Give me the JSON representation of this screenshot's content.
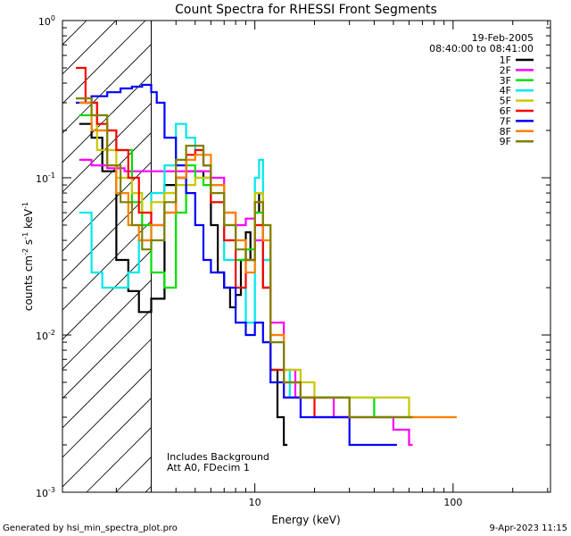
{
  "chart_data": {
    "type": "line",
    "title": "Count Spectra for RHESSI Front Segments",
    "xlabel": "Energy (keV)",
    "ylabel_parts": [
      "counts cm",
      "-2",
      " s",
      "-1",
      " keV",
      "-1"
    ],
    "xscale": "log",
    "yscale": "log",
    "xlim": [
      1.07,
      310
    ],
    "ylim": [
      0.001,
      1
    ],
    "x_ticks": [
      {
        "value": 10,
        "label": "10"
      },
      {
        "value": 100,
        "label": "100"
      }
    ],
    "y_ticks": [
      {
        "value": 0.001,
        "label": "10",
        "exp": "-3"
      },
      {
        "value": 0.01,
        "label": "10",
        "exp": "-2"
      },
      {
        "value": 0.1,
        "label": "10",
        "exp": "-1"
      },
      {
        "value": 1,
        "label": "10",
        "exp": "0"
      }
    ],
    "shaded_region": {
      "from_keV": 1.07,
      "to_keV": 3.0,
      "pattern": "diagonal hatch"
    },
    "date": "19-Feb-2005",
    "time_range": "08:40:00 to 08:41:00",
    "annotations": [
      "Includes Background",
      "Att A0, FDecim 1"
    ],
    "series": [
      {
        "name": "1F",
        "color": "#000000",
        "x": [
          1.3,
          1.5,
          1.7,
          2.0,
          2.3,
          2.6,
          3.0,
          3.5,
          4.0,
          4.5,
          5.0,
          5.5,
          6.0,
          6.5,
          7.0,
          7.5,
          8.0,
          8.5,
          9.0,
          9.5,
          10.0,
          10.5,
          11.0,
          12.0,
          13.0,
          14.0
        ],
        "values": [
          0.22,
          0.18,
          0.11,
          0.03,
          0.019,
          0.014,
          0.017,
          0.09,
          0.1,
          0.11,
          0.11,
          0.1,
          0.05,
          0.025,
          0.02,
          0.015,
          0.018,
          0.03,
          0.045,
          0.03,
          0.06,
          0.08,
          0.02,
          0.006,
          0.003,
          0.002
        ]
      },
      {
        "name": "2F",
        "color": "#ff00ff",
        "x": [
          1.3,
          1.5,
          1.8,
          2.2,
          2.6,
          3.0,
          3.5,
          4.0,
          5.0,
          6.0,
          7.0,
          8.0,
          9.0,
          10.0,
          11.0,
          12.0,
          14.0,
          16.0,
          20.0,
          25.0,
          30.0,
          40.0,
          50.0,
          60.0
        ],
        "values": [
          0.13,
          0.12,
          0.115,
          0.11,
          0.11,
          0.11,
          0.11,
          0.11,
          0.11,
          0.1,
          0.06,
          0.05,
          0.055,
          0.04,
          0.03,
          0.012,
          0.006,
          0.004,
          0.004,
          0.003,
          0.003,
          0.003,
          0.0025,
          0.002
        ]
      },
      {
        "name": "3F",
        "color": "#00e000",
        "x": [
          1.3,
          1.6,
          2.0,
          2.4,
          2.7,
          3.0,
          3.5,
          4.0,
          4.5,
          5.0,
          5.5,
          6.0,
          7.0,
          8.0,
          9.0,
          10.0,
          11.0,
          12.0,
          14.0,
          17.0,
          20.0,
          30.0,
          40.0,
          60.0
        ],
        "values": [
          0.25,
          0.2,
          0.15,
          0.07,
          0.05,
          0.025,
          0.02,
          0.06,
          0.12,
          0.1,
          0.09,
          0.07,
          0.05,
          0.03,
          0.035,
          0.06,
          0.02,
          0.006,
          0.005,
          0.004,
          0.004,
          0.004,
          0.003,
          0.003
        ]
      },
      {
        "name": "4F",
        "color": "#00e8e8",
        "x": [
          1.3,
          1.5,
          1.7,
          2.0,
          2.3,
          2.6,
          3.0,
          3.5,
          4.0,
          4.5,
          5.0,
          5.5,
          6.0,
          7.0,
          8.0,
          9.0,
          10.0,
          10.5,
          11.0,
          12.0,
          15.0,
          20.0,
          30.0,
          50.0
        ],
        "values": [
          0.06,
          0.025,
          0.02,
          0.02,
          0.025,
          0.04,
          0.08,
          0.12,
          0.22,
          0.18,
          0.15,
          0.12,
          0.09,
          0.03,
          0.02,
          0.012,
          0.1,
          0.13,
          0.03,
          0.006,
          0.004,
          0.004,
          0.003,
          0.003
        ]
      },
      {
        "name": "5F",
        "color": "#c8c800",
        "x": [
          1.3,
          1.6,
          2.0,
          2.4,
          2.7,
          3.0,
          3.5,
          4.0,
          5.0,
          6.0,
          7.0,
          8.0,
          9.0,
          10.0,
          11.0,
          12.0,
          14.0,
          17.0,
          20.0,
          25.0,
          30.0,
          40.0,
          60.0,
          100.0
        ],
        "values": [
          0.3,
          0.15,
          0.1,
          0.08,
          0.06,
          0.07,
          0.08,
          0.09,
          0.1,
          0.09,
          0.06,
          0.04,
          0.03,
          0.08,
          0.05,
          0.01,
          0.006,
          0.005,
          0.004,
          0.004,
          0.004,
          0.004,
          0.003,
          0.003
        ]
      },
      {
        "name": "6F",
        "color": "#ff0000",
        "x": [
          1.25,
          1.4,
          1.6,
          1.8,
          2.0,
          2.3,
          2.6,
          3.0,
          3.5,
          4.0,
          4.5,
          5.0,
          5.5,
          6.0,
          7.0,
          8.0,
          9.0,
          10.0,
          11.0,
          12.0,
          14.0,
          17.0,
          20.0,
          30.0
        ],
        "values": [
          0.5,
          0.3,
          0.22,
          0.2,
          0.15,
          0.1,
          0.06,
          0.05,
          0.06,
          0.1,
          0.14,
          0.15,
          0.12,
          0.07,
          0.04,
          0.02,
          0.03,
          0.05,
          0.02,
          0.006,
          0.004,
          0.004,
          0.003,
          0.003
        ]
      },
      {
        "name": "7F",
        "color": "#0000ff",
        "x": [
          1.25,
          1.5,
          1.8,
          2.1,
          2.4,
          2.7,
          3.0,
          3.2,
          3.5,
          4.0,
          4.5,
          5.0,
          5.5,
          6.0,
          7.0,
          8.0,
          9.0,
          10.0,
          11.0,
          12.0,
          14.0,
          17.0,
          20.0,
          30.0,
          50.0
        ],
        "values": [
          0.3,
          0.33,
          0.35,
          0.37,
          0.38,
          0.39,
          0.35,
          0.3,
          0.18,
          0.12,
          0.08,
          0.05,
          0.03,
          0.025,
          0.02,
          0.012,
          0.01,
          0.012,
          0.009,
          0.005,
          0.004,
          0.003,
          0.003,
          0.002,
          0.002
        ]
      },
      {
        "name": "8F",
        "color": "#ff8000",
        "x": [
          1.3,
          1.5,
          1.8,
          2.0,
          2.3,
          2.6,
          3.0,
          3.5,
          4.0,
          4.5,
          5.0,
          6.0,
          7.0,
          8.0,
          9.0,
          10.0,
          11.0,
          12.0,
          14.0,
          17.0,
          20.0,
          30.0,
          50.0,
          100.0
        ],
        "values": [
          0.3,
          0.2,
          0.12,
          0.08,
          0.05,
          0.04,
          0.05,
          0.06,
          0.1,
          0.13,
          0.14,
          0.09,
          0.06,
          0.04,
          0.025,
          0.07,
          0.04,
          0.01,
          0.005,
          0.004,
          0.004,
          0.003,
          0.003,
          0.003
        ]
      },
      {
        "name": "9F",
        "color": "#808000",
        "x": [
          1.25,
          1.5,
          1.8,
          2.1,
          2.4,
          2.7,
          3.0,
          3.5,
          4.0,
          4.5,
          5.0,
          5.5,
          6.0,
          7.0,
          8.0,
          9.0,
          10.0,
          11.0,
          12.0,
          14.0,
          17.0,
          20.0,
          30.0,
          60.0
        ],
        "values": [
          0.32,
          0.25,
          0.12,
          0.07,
          0.05,
          0.035,
          0.04,
          0.07,
          0.13,
          0.16,
          0.16,
          0.12,
          0.08,
          0.05,
          0.035,
          0.03,
          0.07,
          0.05,
          0.009,
          0.005,
          0.004,
          0.004,
          0.003,
          0.003
        ]
      }
    ]
  },
  "footer": {
    "generated_by": "Generated by hsi_min_spectra_plot.pro",
    "timestamp": "9-Apr-2023 11:15"
  }
}
